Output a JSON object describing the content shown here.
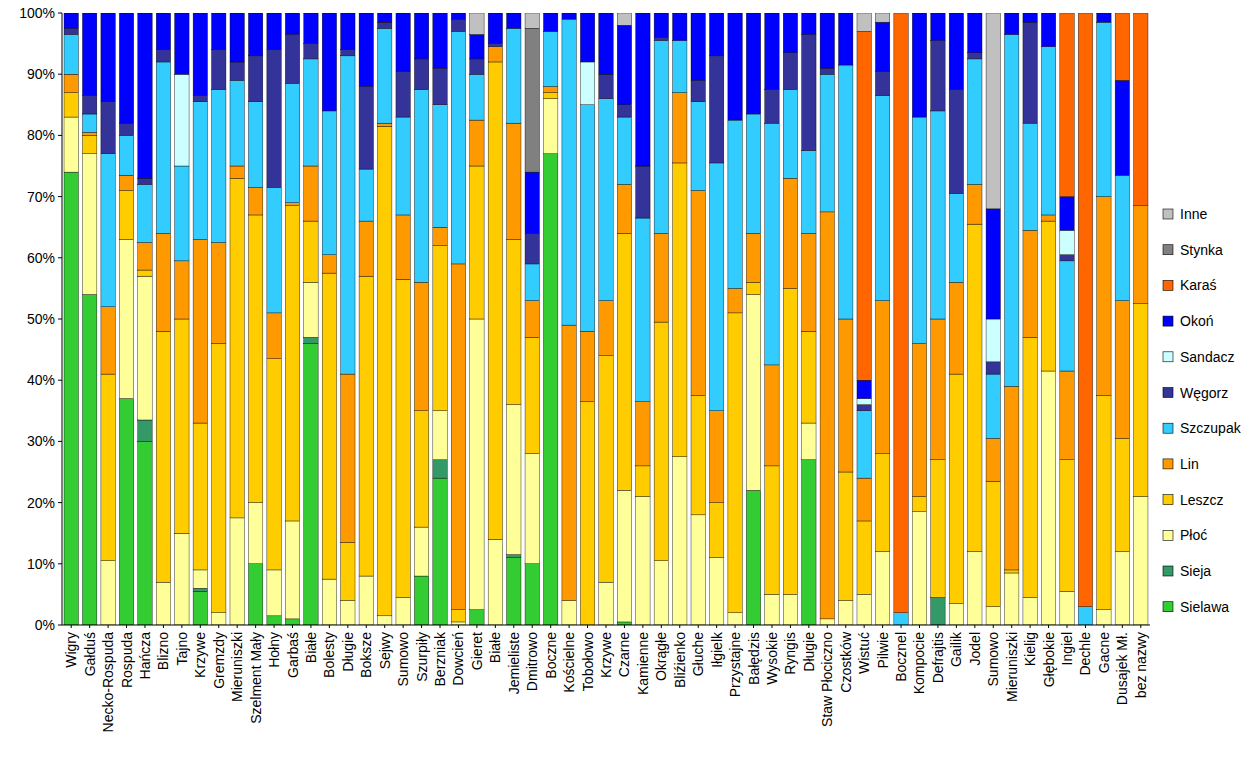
{
  "chart_data": {
    "type": "bar",
    "stacked": true,
    "grid": false,
    "legend": "right",
    "categories": [
      "Wigry",
      "Gałduś",
      "Necko-Rospuda",
      "Rospuda",
      "Hańcza",
      "Blizno",
      "Tajno",
      "Krzywe",
      "Gremzdy",
      "Mieruniszki",
      "Szelment Mały",
      "Hołny",
      "Garbaś",
      "Białe",
      "Bolesty",
      "Długie",
      "Boksze",
      "Sejwy",
      "Sumowo",
      "Szurpiły",
      "Berzniak",
      "Dowcień",
      "Gieret",
      "Białe",
      "Jemieliste",
      "Dmitrowo",
      "Boczne",
      "Kościelne",
      "Tobołowo",
      "Krzywe",
      "Czarne",
      "Kamienne",
      "Okrągłe",
      "Bliźienko",
      "Głuche",
      "Iłgielk",
      "Przystajne",
      "Bałędzis",
      "Wysokie",
      "Ryngis",
      "Długie",
      "Staw Płociczno",
      "Czostków",
      "Wistuć",
      "Pilwie",
      "Bocznel",
      "Kompocie",
      "Defrajtis",
      "Gailik",
      "Jodel",
      "Sumowo",
      "Mieruniszki",
      "Kielig",
      "Głębokie",
      "Ingiel",
      "Dechle",
      "Gacne",
      "Dusajek Mł.",
      "bez nazwy"
    ],
    "ylim": [
      0,
      100
    ],
    "yticks": [
      {
        "value": 0,
        "label": "0%"
      },
      {
        "value": 10,
        "label": "10%"
      },
      {
        "value": 20,
        "label": "20%"
      },
      {
        "value": 30,
        "label": "30%"
      },
      {
        "value": 40,
        "label": "40%"
      },
      {
        "value": 50,
        "label": "50%"
      },
      {
        "value": 60,
        "label": "60%"
      },
      {
        "value": 70,
        "label": "70%"
      },
      {
        "value": 80,
        "label": "80%"
      },
      {
        "value": 90,
        "label": "90%"
      },
      {
        "value": 100,
        "label": "100%"
      }
    ],
    "series": [
      {
        "name": "Sielawa",
        "color": "#33cc33",
        "values": [
          74,
          54,
          0,
          37,
          30,
          0,
          0,
          5.5,
          0,
          0,
          10,
          1.5,
          1,
          46,
          0,
          0,
          0,
          0,
          0,
          8,
          24,
          0,
          2.5,
          0,
          11,
          10,
          77,
          0,
          0,
          0,
          0.5,
          0,
          0,
          0,
          0,
          0,
          0,
          22,
          0,
          0,
          27,
          0,
          0,
          0,
          0,
          0,
          0,
          0,
          0,
          0,
          0,
          0,
          0,
          0,
          0,
          0,
          0,
          0,
          0
        ]
      },
      {
        "name": "Sieja",
        "color": "#339966",
        "values": [
          0,
          0,
          0,
          0,
          3.5,
          0,
          0,
          0.5,
          0,
          0,
          0,
          0,
          0,
          1,
          0,
          0,
          0,
          0,
          0,
          0,
          3,
          0,
          0,
          0,
          0.5,
          0,
          0,
          0,
          0,
          0,
          0,
          0,
          0,
          0,
          0,
          0,
          0,
          0,
          0,
          0,
          0,
          0,
          0,
          0,
          0,
          0,
          0,
          4.5,
          0,
          0,
          0,
          0,
          0,
          0,
          0,
          0,
          0,
          0,
          0
        ]
      },
      {
        "name": "Płoć",
        "color": "#ffff99",
        "values": [
          9,
          23,
          10.5,
          26,
          23.5,
          7,
          15,
          3,
          2,
          17.5,
          10,
          7.5,
          16,
          9,
          7.5,
          4,
          8,
          1.5,
          4.5,
          8,
          8,
          0.5,
          47.5,
          14,
          24.5,
          18,
          9,
          4,
          0,
          7,
          21.5,
          21,
          10.5,
          27.5,
          18,
          11,
          2,
          32,
          5,
          5,
          6,
          1,
          4,
          5,
          12,
          0,
          18.5,
          0,
          3.5,
          12,
          3,
          8.5,
          4.5,
          41.5,
          5.5,
          0,
          2.5,
          12,
          21
        ]
      },
      {
        "name": "Leszcz",
        "color": "#ffcc00",
        "values": [
          4,
          3,
          30.5,
          8,
          1,
          41,
          35,
          24,
          44,
          55.5,
          47,
          34.5,
          51.5,
          10,
          50,
          9.5,
          49,
          80,
          52,
          19,
          27,
          2,
          25,
          78,
          27,
          19,
          1,
          0,
          36.5,
          37,
          42,
          5,
          39,
          48,
          19.5,
          9,
          49,
          2,
          21,
          50,
          15,
          0,
          21,
          12,
          16,
          0,
          2.5,
          22.5,
          37.5,
          53.5,
          20.5,
          0.5,
          42.5,
          24.5,
          21.5,
          0,
          35,
          18.5,
          31.5
        ]
      },
      {
        "name": "Lin",
        "color": "#ff9900",
        "values": [
          3,
          0.5,
          11,
          2.5,
          4.5,
          16,
          9.5,
          30,
          16.5,
          2,
          4.5,
          7.5,
          0.5,
          9,
          3,
          27.5,
          9,
          0.5,
          10.5,
          21,
          3,
          56.5,
          7.5,
          2.5,
          19,
          6,
          1,
          45,
          11.5,
          9,
          8,
          10.5,
          14.5,
          11.5,
          33.5,
          15,
          4,
          8,
          16.5,
          18,
          16,
          66.5,
          25,
          7,
          25,
          0,
          25,
          23,
          15,
          6.5,
          7,
          30,
          17.5,
          1,
          14.5,
          0,
          32.5,
          22.5,
          16
        ]
      },
      {
        "name": "Szczupak",
        "color": "#33ccff",
        "values": [
          6.5,
          3,
          25,
          6.5,
          9.5,
          28,
          15.5,
          22.5,
          25,
          14,
          14,
          20.5,
          19.5,
          17.5,
          23.5,
          52,
          8.5,
          15.5,
          16,
          31.5,
          20,
          38,
          7.5,
          0,
          15.5,
          6,
          9,
          50,
          37,
          33,
          11,
          30,
          31.5,
          8.5,
          14.5,
          40.5,
          27.5,
          19.5,
          39.5,
          14.5,
          13.5,
          22.5,
          41.5,
          11,
          33.5,
          2,
          37,
          34,
          14.5,
          20.5,
          10.5,
          57.5,
          17.5,
          27.5,
          18,
          3,
          28.5,
          20.5,
          0
        ]
      },
      {
        "name": "Węgorz",
        "color": "#333399",
        "values": [
          1,
          3,
          8.5,
          2,
          1,
          2,
          0,
          1,
          6.5,
          3,
          7.5,
          22.5,
          8,
          2.5,
          0,
          1,
          13.5,
          1,
          7.5,
          5,
          6,
          2,
          2.5,
          0.5,
          0,
          5,
          0,
          0,
          0,
          4,
          2,
          8.5,
          0.5,
          0,
          3.5,
          17.5,
          0,
          0,
          5.5,
          6,
          19,
          1,
          0,
          1,
          4,
          0,
          0,
          11.5,
          17,
          1,
          2,
          0,
          16.5,
          0,
          1,
          0,
          0,
          0,
          0
        ]
      },
      {
        "name": "Sandacz",
        "color": "#ccffff",
        "values": [
          0,
          0,
          0,
          0,
          0,
          0,
          15,
          0,
          0,
          0,
          0,
          0,
          0,
          0,
          0,
          0,
          0,
          0,
          0,
          0,
          0,
          0,
          0,
          0,
          0,
          0,
          0,
          0,
          7,
          0,
          0,
          0,
          0,
          0,
          0,
          0,
          0,
          0,
          0,
          0,
          0,
          0,
          0,
          1,
          0,
          0,
          0,
          0,
          0,
          0,
          7,
          0,
          0,
          0,
          4,
          0,
          0,
          0,
          0
        ]
      },
      {
        "name": "Okoń",
        "color": "#0000ff",
        "values": [
          2.5,
          13.5,
          14.5,
          18,
          27,
          6,
          10,
          13.5,
          6,
          8,
          7,
          6,
          3.5,
          5,
          16,
          6,
          12,
          1.5,
          9.5,
          7.5,
          9,
          1,
          4,
          5,
          2.5,
          10,
          3,
          1,
          8,
          10,
          13,
          25,
          4,
          4.5,
          11,
          7,
          17.5,
          16.5,
          12.5,
          6.5,
          3.5,
          9,
          8.5,
          3,
          8,
          0,
          17,
          4.5,
          12.5,
          6.5,
          18,
          3.5,
          1.5,
          5.5,
          5.5,
          0,
          1.5,
          15.5,
          0
        ]
      },
      {
        "name": "Karaś",
        "color": "#ff6600",
        "values": [
          0,
          0,
          0,
          0,
          0,
          0,
          0,
          0,
          0,
          0,
          0,
          0,
          0,
          0,
          0,
          0,
          0,
          0,
          0,
          0,
          0,
          0,
          0,
          0,
          0,
          0,
          0,
          0,
          0,
          0,
          0,
          0,
          0,
          0,
          0,
          0,
          0,
          0,
          0,
          0,
          0,
          0,
          0,
          57,
          0,
          98,
          0,
          0,
          0,
          0,
          0,
          0,
          0,
          0,
          30,
          97,
          0,
          11,
          31.5
        ]
      },
      {
        "name": "Stynka",
        "color": "#808080",
        "values": [
          0,
          0,
          0,
          0,
          0,
          0,
          0,
          0,
          0,
          0,
          0,
          0,
          0,
          0,
          0,
          0,
          0,
          0,
          0,
          0,
          0,
          0,
          0,
          0,
          0,
          23.5,
          0,
          0,
          0,
          0,
          0,
          0,
          0,
          0,
          0,
          0,
          0,
          0,
          0,
          0,
          0,
          0,
          0,
          0,
          0,
          0,
          0,
          0,
          0,
          0,
          0,
          0,
          0,
          0,
          0,
          0,
          0,
          0,
          0
        ]
      },
      {
        "name": "Inne",
        "color": "#c0c0c0",
        "values": [
          0,
          0,
          0,
          0,
          0,
          0,
          0,
          0,
          0,
          0,
          0,
          0,
          0,
          0,
          0,
          0,
          0,
          0,
          0,
          0,
          0,
          0,
          3.5,
          0,
          0,
          2.5,
          0,
          0,
          0,
          0,
          2,
          0,
          0,
          0,
          0,
          0,
          0,
          0,
          0,
          0,
          0,
          0,
          0,
          3,
          1.5,
          0,
          0,
          0,
          0,
          0,
          32,
          0,
          0,
          0,
          0,
          0,
          0,
          0,
          0
        ]
      }
    ]
  }
}
